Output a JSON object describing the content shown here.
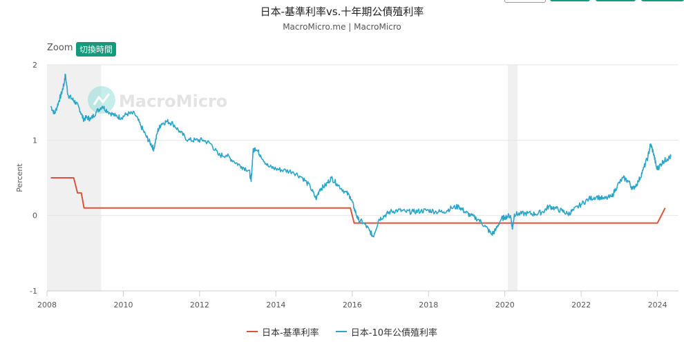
{
  "colors": {
    "series_rate": "#d9533b",
    "series_yield": "#2ba4c8",
    "recession_band": "#f0f0f0",
    "accent": "#159a7d"
  },
  "toolbar": {
    "zoom_label": "Zoom",
    "zoom_button": "切換時間"
  },
  "watermark": "MacroMicro",
  "chart_data": {
    "type": "line",
    "title": "日本-基準利率vs.十年期公債殖利率",
    "subtitle": "MacroMicro.me | MacroMicro",
    "ylabel": "Percent",
    "xlabel": "",
    "xlim": [
      2008.0,
      2024.55
    ],
    "ylim": [
      -1,
      2
    ],
    "x_ticks": [
      "2008",
      "2010",
      "2012",
      "2014",
      "2016",
      "2018",
      "2020",
      "2022",
      "2024"
    ],
    "y_ticks": [
      "-1",
      "0",
      "1",
      "2"
    ],
    "grid": true,
    "legend_position": "bottom-center",
    "shaded_periods": [
      [
        2008.0,
        2009.42
      ],
      [
        2020.08,
        2020.33
      ]
    ],
    "series": [
      {
        "name": "日本-基準利率",
        "color": "#d9533b",
        "points": [
          [
            2008.1,
            0.5
          ],
          [
            2008.7,
            0.5
          ],
          [
            2008.8,
            0.3
          ],
          [
            2008.9,
            0.3
          ],
          [
            2008.97,
            0.1
          ],
          [
            2015.95,
            0.1
          ],
          [
            2016.05,
            -0.1
          ],
          [
            2024.0,
            -0.1
          ],
          [
            2024.2,
            0.1
          ]
        ]
      },
      {
        "name": "日本-10年公債殖利率",
        "color": "#2ba4c8",
        "points": [
          [
            2008.1,
            1.45
          ],
          [
            2008.2,
            1.35
          ],
          [
            2008.3,
            1.5
          ],
          [
            2008.38,
            1.62
          ],
          [
            2008.45,
            1.75
          ],
          [
            2008.48,
            1.87
          ],
          [
            2008.55,
            1.6
          ],
          [
            2008.65,
            1.55
          ],
          [
            2008.75,
            1.5
          ],
          [
            2008.85,
            1.42
          ],
          [
            2008.95,
            1.28
          ],
          [
            2009.05,
            1.3
          ],
          [
            2009.15,
            1.28
          ],
          [
            2009.3,
            1.38
          ],
          [
            2009.45,
            1.45
          ],
          [
            2009.6,
            1.38
          ],
          [
            2009.8,
            1.32
          ],
          [
            2009.95,
            1.3
          ],
          [
            2010.1,
            1.35
          ],
          [
            2010.3,
            1.35
          ],
          [
            2010.45,
            1.2
          ],
          [
            2010.6,
            1.05
          ],
          [
            2010.72,
            0.95
          ],
          [
            2010.8,
            0.88
          ],
          [
            2010.9,
            1.12
          ],
          [
            2011.0,
            1.22
          ],
          [
            2011.15,
            1.25
          ],
          [
            2011.3,
            1.22
          ],
          [
            2011.5,
            1.1
          ],
          [
            2011.7,
            1.0
          ],
          [
            2011.9,
            1.0
          ],
          [
            2012.1,
            1.0
          ],
          [
            2012.3,
            0.95
          ],
          [
            2012.5,
            0.8
          ],
          [
            2012.7,
            0.8
          ],
          [
            2012.9,
            0.72
          ],
          [
            2013.1,
            0.65
          ],
          [
            2013.3,
            0.6
          ],
          [
            2013.35,
            0.45
          ],
          [
            2013.4,
            0.85
          ],
          [
            2013.45,
            0.9
          ],
          [
            2013.6,
            0.8
          ],
          [
            2013.8,
            0.65
          ],
          [
            2014.0,
            0.62
          ],
          [
            2014.2,
            0.6
          ],
          [
            2014.45,
            0.58
          ],
          [
            2014.7,
            0.5
          ],
          [
            2014.9,
            0.38
          ],
          [
            2015.05,
            0.22
          ],
          [
            2015.15,
            0.35
          ],
          [
            2015.3,
            0.4
          ],
          [
            2015.45,
            0.5
          ],
          [
            2015.6,
            0.42
          ],
          [
            2015.8,
            0.32
          ],
          [
            2015.95,
            0.25
          ],
          [
            2016.05,
            0.1
          ],
          [
            2016.15,
            -0.05
          ],
          [
            2016.3,
            -0.1
          ],
          [
            2016.45,
            -0.2
          ],
          [
            2016.55,
            -0.28
          ],
          [
            2016.7,
            -0.05
          ],
          [
            2016.85,
            0.0
          ],
          [
            2017.0,
            0.05
          ],
          [
            2017.2,
            0.07
          ],
          [
            2017.4,
            0.05
          ],
          [
            2017.6,
            0.05
          ],
          [
            2017.8,
            0.06
          ],
          [
            2018.0,
            0.07
          ],
          [
            2018.2,
            0.05
          ],
          [
            2018.4,
            0.05
          ],
          [
            2018.6,
            0.1
          ],
          [
            2018.8,
            0.12
          ],
          [
            2018.95,
            0.05
          ],
          [
            2019.1,
            0.0
          ],
          [
            2019.3,
            -0.05
          ],
          [
            2019.5,
            -0.15
          ],
          [
            2019.65,
            -0.25
          ],
          [
            2019.75,
            -0.2
          ],
          [
            2019.9,
            -0.05
          ],
          [
            2020.0,
            -0.02
          ],
          [
            2020.15,
            0.0
          ],
          [
            2020.2,
            -0.18
          ],
          [
            2020.25,
            0.02
          ],
          [
            2020.4,
            0.02
          ],
          [
            2020.6,
            0.03
          ],
          [
            2020.8,
            0.02
          ],
          [
            2021.0,
            0.05
          ],
          [
            2021.15,
            0.12
          ],
          [
            2021.3,
            0.1
          ],
          [
            2021.5,
            0.06
          ],
          [
            2021.65,
            0.02
          ],
          [
            2021.8,
            0.07
          ],
          [
            2022.0,
            0.15
          ],
          [
            2022.2,
            0.22
          ],
          [
            2022.4,
            0.25
          ],
          [
            2022.6,
            0.22
          ],
          [
            2022.8,
            0.25
          ],
          [
            2022.95,
            0.4
          ],
          [
            2023.1,
            0.5
          ],
          [
            2023.25,
            0.45
          ],
          [
            2023.35,
            0.35
          ],
          [
            2023.5,
            0.45
          ],
          [
            2023.62,
            0.6
          ],
          [
            2023.75,
            0.78
          ],
          [
            2023.82,
            0.95
          ],
          [
            2023.9,
            0.82
          ],
          [
            2023.98,
            0.62
          ],
          [
            2024.05,
            0.65
          ],
          [
            2024.15,
            0.72
          ],
          [
            2024.25,
            0.75
          ],
          [
            2024.35,
            0.78
          ]
        ]
      }
    ]
  }
}
